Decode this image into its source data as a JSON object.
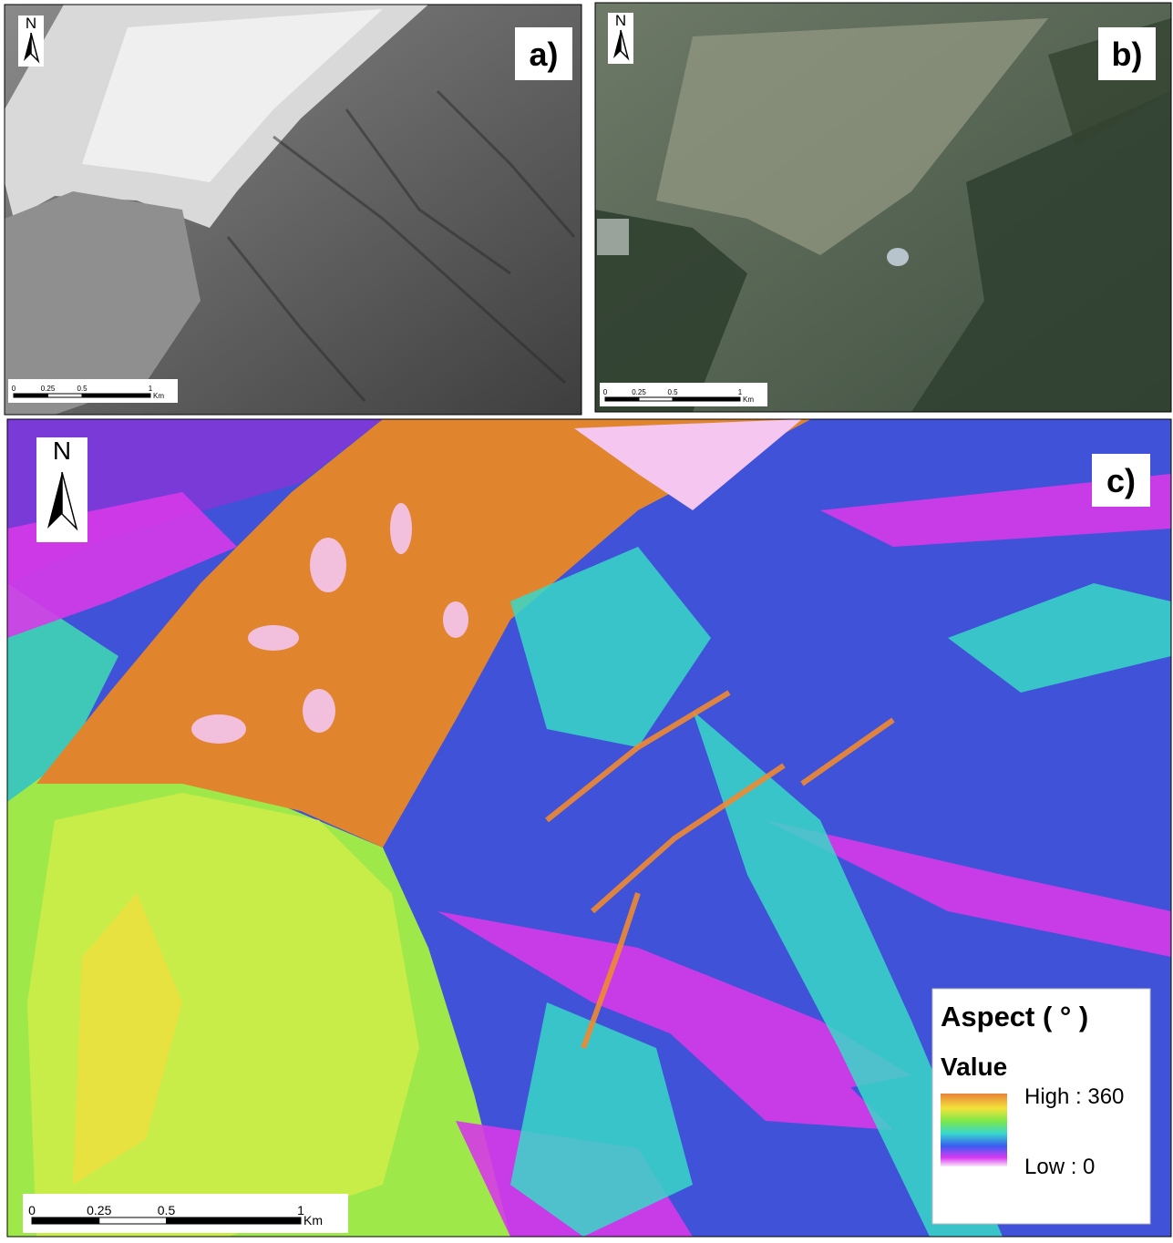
{
  "panels": [
    {
      "label": "a)",
      "north": "N",
      "scale_bar": {
        "labels": [
          "0",
          "0.25",
          "0.5",
          "1"
        ],
        "unit": "Km"
      }
    },
    {
      "label": "b)",
      "north": "N",
      "scale_bar": {
        "labels": [
          "0",
          "0.25",
          "0.5",
          "1"
        ],
        "unit": "Km"
      }
    },
    {
      "label": "c)",
      "north": "N",
      "scale_bar": {
        "labels": [
          "0",
          "0.25",
          "0.5",
          "1"
        ],
        "unit": "Km"
      }
    }
  ],
  "legend": {
    "title": "Aspect ( ° )",
    "subtitle": "Value",
    "high": "High : 360",
    "low": "Low : 0"
  }
}
